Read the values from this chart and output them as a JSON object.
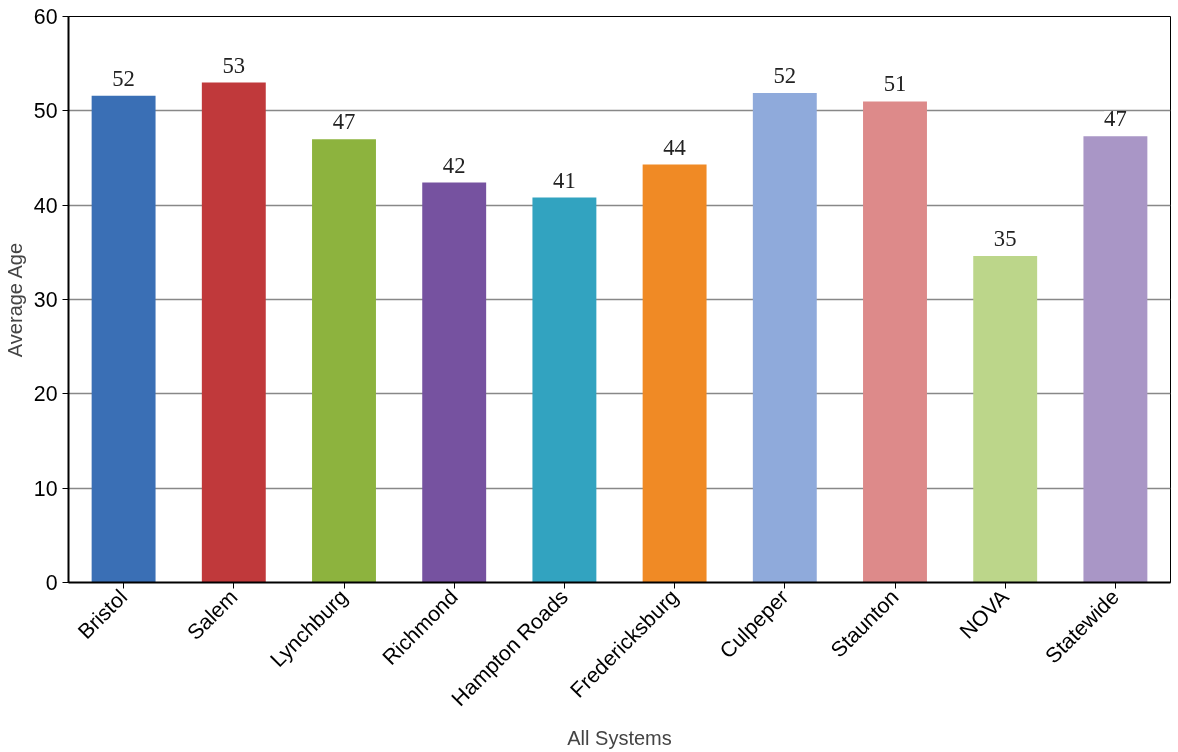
{
  "chart_data": {
    "type": "bar",
    "xlabel": "All Systems",
    "ylabel": "Average Age",
    "categories": [
      "Bristol",
      "Salem",
      "Lynchburg",
      "Richmond",
      "Hampton Roads",
      "Fredericksburg",
      "Culpeper",
      "Staunton",
      "NOVA",
      "Statewide"
    ],
    "values": [
      51.6,
      53.0,
      47.0,
      42.4,
      40.8,
      44.3,
      51.9,
      51.0,
      34.6,
      47.3
    ],
    "value_labels": [
      "52",
      "53",
      "47",
      "42",
      "41",
      "44",
      "52",
      "51",
      "35",
      "47"
    ],
    "colors": [
      "#3a6fb5",
      "#c0393b",
      "#8db33e",
      "#7652a0",
      "#32a3c0",
      "#f08a25",
      "#8faadb",
      "#dd8a8a",
      "#bcd68a",
      "#a996c6"
    ],
    "ylim": [
      0,
      60
    ],
    "yticks": [
      0,
      10,
      20,
      30,
      40,
      50,
      60
    ],
    "grid": "y"
  }
}
